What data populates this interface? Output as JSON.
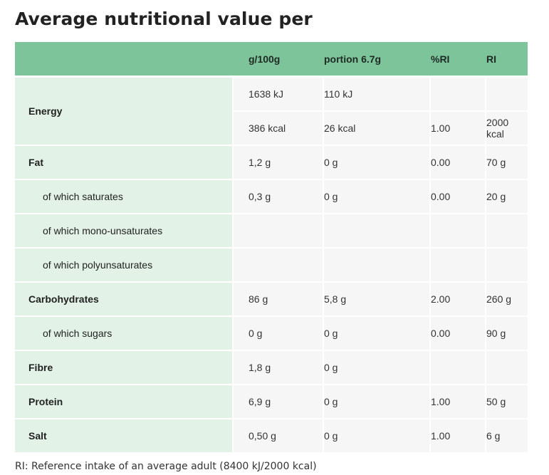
{
  "title": "Average nutritional value per",
  "headers": [
    "",
    "g/100g",
    "portion 6.7g",
    "%RI",
    "RI"
  ],
  "rows": {
    "energy": {
      "label": "Energy",
      "kj_100g": "1638 kJ",
      "kj_portion": "110 kJ",
      "kcal_100g": "386 kcal",
      "kcal_portion": "26 kcal",
      "ri_pct": "1.00",
      "ri": "2000 kcal"
    },
    "fat": {
      "label": "Fat",
      "per100": "1,2 g",
      "portion": "0 g",
      "ri_pct": "0.00",
      "ri": "70 g"
    },
    "saturates": {
      "label": "of which saturates",
      "per100": "0,3 g",
      "portion": "0 g",
      "ri_pct": "0.00",
      "ri": "20 g"
    },
    "mono": {
      "label": "of which mono-unsaturates",
      "per100": "",
      "portion": "",
      "ri_pct": "",
      "ri": ""
    },
    "poly": {
      "label": "of which polyunsaturates",
      "per100": "",
      "portion": "",
      "ri_pct": "",
      "ri": ""
    },
    "carbs": {
      "label": "Carbohydrates",
      "per100": "86 g",
      "portion": "5,8 g",
      "ri_pct": "2.00",
      "ri": "260 g"
    },
    "sugars": {
      "label": "of which sugars",
      "per100": "0 g",
      "portion": "0 g",
      "ri_pct": "0.00",
      "ri": "90 g"
    },
    "fibre": {
      "label": "Fibre",
      "per100": "1,8 g",
      "portion": "0 g",
      "ri_pct": "",
      "ri": ""
    },
    "protein": {
      "label": "Protein",
      "per100": "6,9 g",
      "portion": "0 g",
      "ri_pct": "1.00",
      "ri": "50 g"
    },
    "salt": {
      "label": "Salt",
      "per100": "0,50 g",
      "portion": "0 g",
      "ri_pct": "1.00",
      "ri": "6 g"
    }
  },
  "footnote": "RI: Reference intake of an average adult (8400 kJ/2000 kcal)"
}
